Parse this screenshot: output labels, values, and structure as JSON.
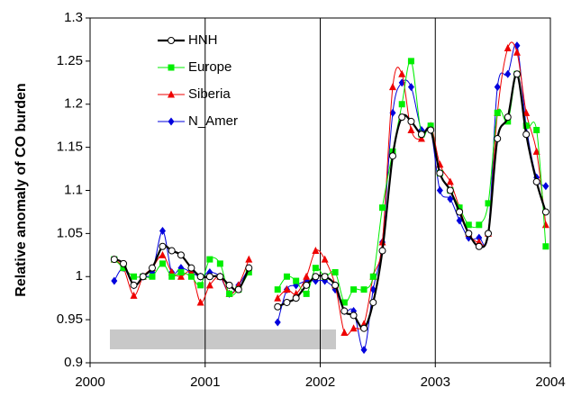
{
  "chart_data": {
    "type": "line",
    "y_label": "Relative anomaly of CO burden",
    "x": [
      2000.21,
      2000.29,
      2000.38,
      2000.46,
      2000.54,
      2000.63,
      2000.71,
      2000.79,
      2000.88,
      2000.96,
      2001.04,
      2001.13,
      2001.21,
      2001.29,
      2001.38,
      2001.46,
      2001.54,
      2001.63,
      2001.71,
      2001.79,
      2001.88,
      2001.96,
      2002.04,
      2002.13,
      2002.21,
      2002.29,
      2002.38,
      2002.46,
      2002.54,
      2002.63,
      2002.71,
      2002.79,
      2002.88,
      2002.96,
      2003.04,
      2003.13,
      2003.21,
      2003.29,
      2003.38,
      2003.46,
      2003.54,
      2003.63,
      2003.71,
      2003.79,
      2003.88,
      2003.96
    ],
    "series": [
      {
        "name": "HNH",
        "color": "#000000",
        "marker": "circle",
        "values": [
          1.02,
          1.015,
          0.99,
          1.0,
          1.01,
          1.035,
          1.03,
          1.025,
          1.01,
          1.0,
          1.0,
          1.0,
          0.99,
          0.985,
          1.01,
          null,
          null,
          0.965,
          0.97,
          0.975,
          0.99,
          1.0,
          1.0,
          0.99,
          0.96,
          0.955,
          0.94,
          0.97,
          1.03,
          1.14,
          1.185,
          1.18,
          1.165,
          1.17,
          1.12,
          1.1,
          1.075,
          1.05,
          1.035,
          1.05,
          1.16,
          1.185,
          1.235,
          1.165,
          1.11,
          1.075
        ]
      },
      {
        "name": "Europe",
        "color": "#00ee00",
        "marker": "square",
        "values": [
          1.02,
          1.01,
          1.0,
          1.0,
          1.0,
          1.015,
          1.0,
          1.005,
          1.0,
          0.99,
          1.02,
          1.015,
          0.98,
          0.985,
          1.005,
          null,
          null,
          0.985,
          1.0,
          0.995,
          0.98,
          1.01,
          1.0,
          1.005,
          0.97,
          0.985,
          0.985,
          1.0,
          1.08,
          1.145,
          1.2,
          1.25,
          1.165,
          1.175,
          1.12,
          1.1,
          1.08,
          1.06,
          1.06,
          1.085,
          1.19,
          1.18,
          1.235,
          1.175,
          1.17,
          1.035
        ]
      },
      {
        "name": "Siberia",
        "color": "#ee0000",
        "marker": "triangle",
        "values": [
          1.02,
          1.01,
          0.978,
          1.0,
          1.01,
          1.025,
          1.005,
          1.0,
          1.005,
          0.97,
          0.99,
          1.0,
          0.98,
          0.99,
          1.02,
          null,
          null,
          0.975,
          0.985,
          0.98,
          1.0,
          1.03,
          1.02,
          0.99,
          0.935,
          0.94,
          0.945,
          1.0,
          1.04,
          1.22,
          1.235,
          1.17,
          1.16,
          1.175,
          1.13,
          1.11,
          1.08,
          1.05,
          1.04,
          1.05,
          1.19,
          1.265,
          1.26,
          1.19,
          1.145,
          1.06
        ]
      },
      {
        "name": "N_Amer",
        "color": "#0000dd",
        "marker": "diamond",
        "values": [
          0.995,
          1.01,
          0.99,
          1.0,
          1.005,
          1.053,
          1.005,
          1.01,
          1.005,
          1.0,
          1.005,
          1.0,
          0.98,
          0.99,
          1.01,
          null,
          null,
          0.947,
          0.985,
          0.99,
          0.995,
          0.995,
          0.995,
          0.985,
          0.96,
          0.96,
          0.915,
          0.985,
          1.04,
          1.19,
          1.225,
          1.22,
          1.17,
          1.17,
          1.1,
          1.09,
          1.065,
          1.045,
          1.045,
          1.05,
          1.22,
          1.235,
          1.268,
          1.175,
          1.115,
          1.105
        ]
      }
    ],
    "xlim": [
      2000,
      2004
    ],
    "xticks": [
      2000,
      2001,
      2002,
      2003,
      2004
    ],
    "ylim": [
      0.9,
      1.3
    ],
    "yticks": [
      0.9,
      0.95,
      1,
      1.05,
      1.1,
      1.15,
      1.2,
      1.25,
      1.3
    ],
    "grid": "x",
    "legend": "upper left"
  }
}
